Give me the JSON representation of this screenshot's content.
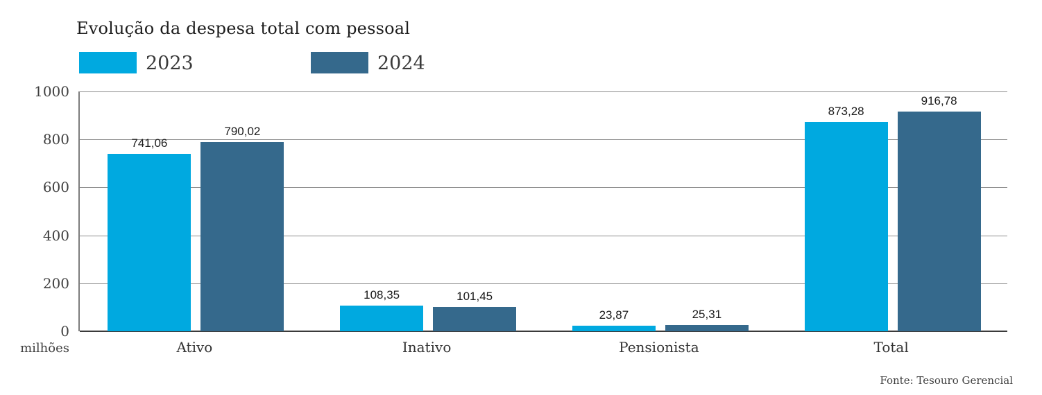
{
  "title": "Evolução da despesa total com pessoal",
  "legend": {
    "items": [
      {
        "label": "2023",
        "color": "#00A9E0"
      },
      {
        "label": "2024",
        "color": "#35698C"
      }
    ]
  },
  "y_axis": {
    "unit_label": "milhões",
    "tick_labels": [
      "0",
      "200",
      "400",
      "600",
      "800",
      "1000"
    ]
  },
  "source_note": "Fonte: Tesouro Gerencial",
  "colors": {
    "series_2023": "#00A9E0",
    "series_2024": "#35698C",
    "gridline": "#8A8A8A",
    "axis_line": "#3B3B3B"
  },
  "chart_data": {
    "type": "bar",
    "title": "Evolução da despesa total com pessoal",
    "categories": [
      "Ativo",
      "Inativo",
      "Pensionista",
      "Total"
    ],
    "series": [
      {
        "name": "2023",
        "color": "#00A9E0",
        "values": [
          741.06,
          108.35,
          23.87,
          873.28
        ],
        "value_labels": [
          "741,06",
          "108,35",
          "23,87",
          "873,28"
        ]
      },
      {
        "name": "2024",
        "color": "#35698C",
        "values": [
          790.02,
          101.45,
          25.31,
          916.78
        ],
        "value_labels": [
          "790,02",
          "101,45",
          "25,31",
          "916,78"
        ]
      }
    ],
    "xlabel": "",
    "ylabel": "milhões",
    "ylim": [
      0,
      1000
    ],
    "y_ticks": [
      0,
      200,
      400,
      600,
      800,
      1000
    ],
    "grid": true,
    "legend_position": "top-left",
    "source": "Fonte: Tesouro Gerencial"
  }
}
